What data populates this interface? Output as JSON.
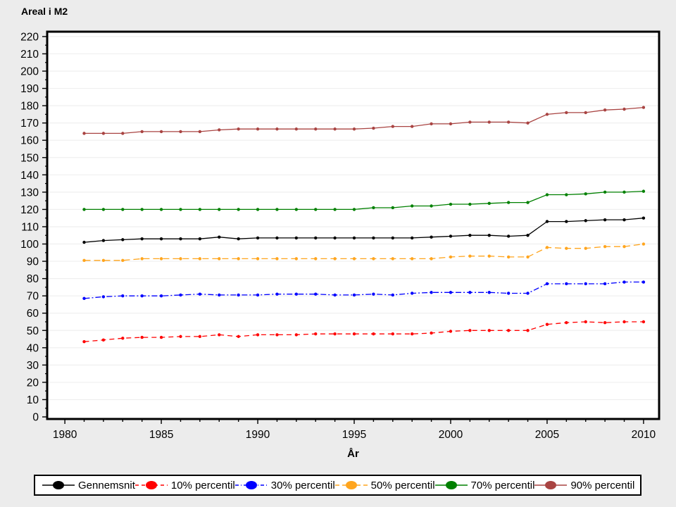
{
  "page_title": "Areal i M2",
  "chart_data": {
    "type": "line",
    "title": "Areal i M2",
    "xlabel": "År",
    "ylabel": "",
    "grid": "horizontal",
    "legend_position": "bottom",
    "xlim": [
      1979.12,
      2010.77
    ],
    "ylim": [
      -0.8,
      222.4
    ],
    "y_ticks": [
      0,
      10,
      20,
      30,
      40,
      50,
      60,
      70,
      80,
      90,
      100,
      110,
      120,
      130,
      140,
      150,
      160,
      170,
      180,
      190,
      200,
      210,
      220
    ],
    "x_major_ticks": [
      1980,
      1985,
      1990,
      1995,
      2000,
      2005,
      2010
    ],
    "x_minor_ticks_every_year": true,
    "x": [
      1981,
      1982,
      1983,
      1984,
      1985,
      1986,
      1987,
      1988,
      1989,
      1990,
      1991,
      1992,
      1993,
      1994,
      1995,
      1996,
      1997,
      1998,
      1999,
      2000,
      2001,
      2002,
      2003,
      2004,
      2005,
      2006,
      2007,
      2008,
      2009,
      2010
    ],
    "series": [
      {
        "name": "Gennemsnit",
        "color": "#000000",
        "dash": "",
        "legend_dash": "",
        "values": [
          101,
          102,
          102.5,
          103,
          103,
          103,
          103,
          104,
          103,
          103.5,
          103.5,
          103.5,
          103.5,
          103.5,
          103.5,
          103.5,
          103.5,
          103.5,
          104,
          104.5,
          105,
          105,
          104.5,
          105,
          113,
          113,
          113.5,
          114,
          114,
          115
        ]
      },
      {
        "name": "10% percentil",
        "color": "#FF0000",
        "dash": "7 5",
        "legend_dash": "5 4",
        "values": [
          43.5,
          44.5,
          45.5,
          46,
          46,
          46.5,
          46.5,
          47.5,
          46.5,
          47.5,
          47.5,
          47.5,
          48,
          48,
          48,
          48,
          48,
          48,
          48.5,
          49.5,
          50,
          50,
          50,
          50,
          53.5,
          54.5,
          55,
          54.5,
          55,
          55
        ]
      },
      {
        "name": "30% percentil",
        "color": "#0000FF",
        "dash": "8 3 2 3",
        "legend_dash": "5 3 1 3",
        "values": [
          68.5,
          69.5,
          70,
          70,
          70,
          70.5,
          71,
          70.5,
          70.5,
          70.5,
          71,
          71,
          71,
          70.5,
          70.5,
          71,
          70.5,
          71.5,
          72,
          72,
          72,
          72,
          71.5,
          71.5,
          77,
          77,
          77,
          77,
          78,
          78
        ]
      },
      {
        "name": "50% percentil",
        "color": "#FFA51E",
        "dash": "9 5",
        "legend_dash": "6 4",
        "values": [
          90.5,
          90.5,
          90.5,
          91.5,
          91.5,
          91.5,
          91.5,
          91.5,
          91.5,
          91.5,
          91.5,
          91.5,
          91.5,
          91.5,
          91.5,
          91.5,
          91.5,
          91.5,
          91.5,
          92.5,
          93,
          93,
          92.5,
          92.5,
          98,
          97.5,
          97.5,
          98.5,
          98.5,
          100
        ]
      },
      {
        "name": "70% percentil",
        "color": "#008000",
        "dash": "",
        "legend_dash": "",
        "values": [
          120,
          120,
          120,
          120,
          120,
          120,
          120,
          120,
          120,
          120,
          120,
          120,
          120,
          120,
          120,
          121,
          121,
          122,
          122,
          123,
          123,
          123.5,
          124,
          124,
          128.5,
          128.5,
          129,
          130,
          130,
          130.5
        ]
      },
      {
        "name": "90% percentil",
        "color": "#A94442",
        "dash": "",
        "legend_dash": "",
        "values": [
          164,
          164,
          164,
          165,
          165,
          165,
          165,
          166,
          166.5,
          166.5,
          166.5,
          166.5,
          166.5,
          166.5,
          166.5,
          167,
          168,
          168,
          169.5,
          169.5,
          170.5,
          170.5,
          170.5,
          170,
          175,
          176,
          176,
          177.5,
          178,
          179
        ]
      }
    ]
  },
  "colors": {
    "background": "#ECECEC",
    "plot_background": "#FFFFFF",
    "gridline": "#EFEFEF",
    "axis": "#000000"
  }
}
